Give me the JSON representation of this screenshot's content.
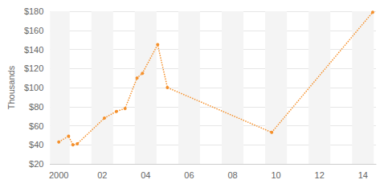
{
  "chart_data": {
    "type": "line",
    "y_label": "Thousands",
    "x": [
      2000.0,
      2000.45,
      2000.65,
      2000.85,
      2002.1,
      2002.65,
      2003.05,
      2003.6,
      2003.85,
      2004.55,
      2005.0,
      2009.8,
      2014.45
    ],
    "values": [
      43,
      49,
      40,
      41,
      68,
      75,
      78,
      110,
      115,
      145,
      100,
      53,
      179
    ],
    "color": "#f5902b",
    "marker": "circle",
    "line_style": "dotted",
    "xlim": [
      1999.6,
      2014.6
    ],
    "xticks": [
      2000,
      {
        "value": 2002,
        "label": "02"
      },
      {
        "value": 2004,
        "label": "04"
      },
      {
        "value": 2006,
        "label": "06"
      },
      {
        "value": 2008,
        "label": "08"
      },
      {
        "value": 2010,
        "label": "10"
      },
      {
        "value": 2012,
        "label": "12"
      },
      {
        "value": 2014,
        "label": "14"
      }
    ],
    "ylim": [
      20,
      180
    ],
    "yticks": [
      {
        "value": 20,
        "label": "$20"
      },
      {
        "value": 40,
        "label": "$40"
      },
      {
        "value": 60,
        "label": "$60"
      },
      {
        "value": 80,
        "label": "$80"
      },
      {
        "value": 100,
        "label": "$100"
      },
      {
        "value": 120,
        "label": "$120"
      },
      {
        "value": 140,
        "label": "$140"
      },
      {
        "value": 160,
        "label": "$160"
      },
      {
        "value": 180,
        "label": "$180"
      }
    ],
    "grid": true
  }
}
